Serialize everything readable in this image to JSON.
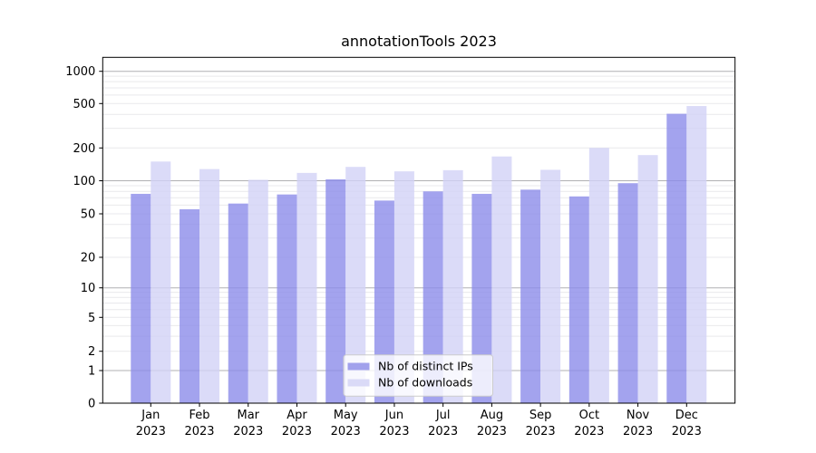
{
  "figure": {
    "background": "#ffffff"
  },
  "chart_data": {
    "type": "bar",
    "title": "annotationTools 2023",
    "months": [
      "Jan",
      "Feb",
      "Mar",
      "Apr",
      "May",
      "Jun",
      "Jul",
      "Aug",
      "Sep",
      "Oct",
      "Nov",
      "Dec"
    ],
    "year": "2023",
    "series": [
      {
        "name": "Nb of distinct IPs",
        "color": "#8c8cea",
        "legend_color": "#a1a1ec",
        "values": [
          76,
          55,
          62,
          75,
          103,
          66,
          80,
          76,
          83,
          72,
          95,
          405
        ]
      },
      {
        "name": "Nb of downloads",
        "color": "#d2d2f6",
        "legend_color": "#dadaf7",
        "values": [
          150,
          128,
          102,
          118,
          134,
          122,
          125,
          167,
          126,
          200,
          172,
          475
        ]
      }
    ],
    "y_ticks": [
      0,
      1,
      2,
      5,
      10,
      20,
      50,
      100,
      200,
      500,
      1000
    ],
    "y_scale": "symlog (logarithmic above 1, linear 0 to 1)",
    "ylim": [
      0,
      1350
    ],
    "grid": "horizontal major and minor gridlines",
    "legend_position": "lower center",
    "xlabel": "",
    "ylabel": ""
  },
  "colors": {
    "grid_major": "#b0b0b3",
    "grid_minor": "#e9e9ec",
    "spine": "#000000",
    "text": "#000000",
    "legend_border": "#cccccc",
    "legend_bg": "#ffffff"
  }
}
